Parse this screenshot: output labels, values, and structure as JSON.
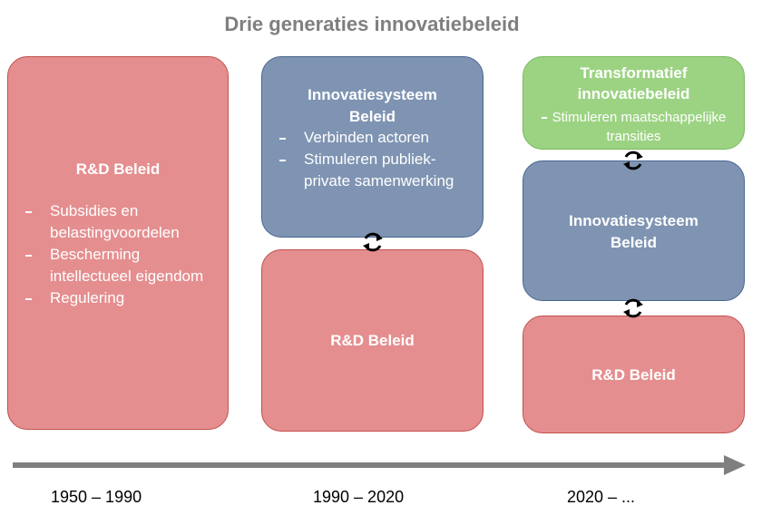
{
  "title": "Drie generaties innovatiebeleid",
  "columns": [
    {
      "boxes": [
        {
          "title": "R&D Beleid",
          "items": [
            "Subsidies en belastingvoordelen",
            "Bescherming intellectueel eigendom",
            "Regulering"
          ]
        }
      ],
      "period": "1950 – 1990"
    },
    {
      "boxes": [
        {
          "title": "Innovatiesysteem Beleid",
          "items": [
            "Verbinden actoren",
            "Stimuleren publiek-private samenwerking"
          ]
        },
        {
          "title": "R&D Beleid"
        }
      ],
      "period": "1990 – 2020"
    },
    {
      "boxes": [
        {
          "title": "Transformatief innovatiebeleid",
          "items": [
            "Stimuleren maatschappelijke transities"
          ]
        },
        {
          "title": "Innovatiesysteem Beleid"
        },
        {
          "title": "R&D Beleid"
        }
      ],
      "period": "2020 – ..."
    }
  ]
}
